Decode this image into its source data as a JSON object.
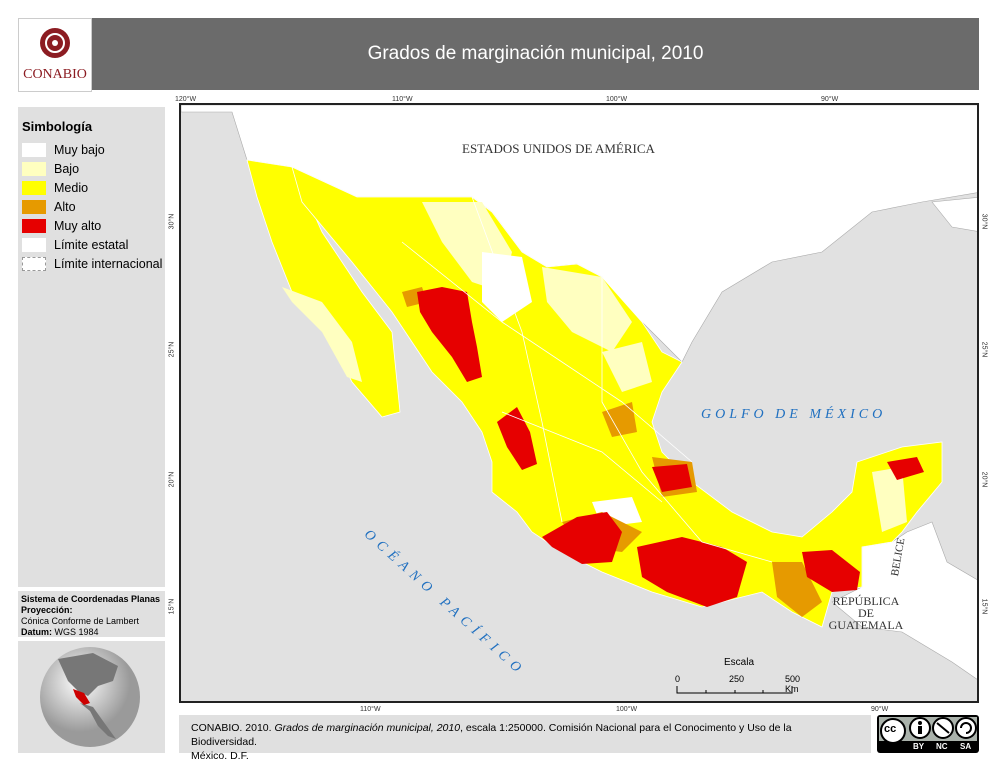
{
  "header": {
    "title": "Grados de marginación municipal, 2010",
    "logo_text": "CONABIO"
  },
  "legend": {
    "title": "Simbología",
    "items": [
      {
        "label": "Muy bajo",
        "color": "#ffffff"
      },
      {
        "label": "Bajo",
        "color": "#ffffc0"
      },
      {
        "label": "Medio",
        "color": "#ffff00"
      },
      {
        "label": "Alto",
        "color": "#e69a00"
      },
      {
        "label": "Muy alto",
        "color": "#e60000"
      },
      {
        "label": "Límite estatal",
        "color": "#ffffff"
      },
      {
        "label": "Límite internacional",
        "color": "#ffffff"
      }
    ]
  },
  "projection": {
    "system": "Sistema de Coordenadas Planas",
    "projection_label": "Proyección:",
    "projection_value": "Cónica Conforme de Lambert",
    "datum_label": "Datum:",
    "datum_value": "WGS 1984"
  },
  "map": {
    "labels": {
      "usa": "ESTADOS UNIDOS DE AMÉRICA",
      "gulf": "GOLFO DE MÉXICO",
      "pacific": "OCÉANO PACÍFICO",
      "belize": "BELICE",
      "guatemala_1": "REPÚBLICA",
      "guatemala_2": "DE",
      "guatemala_3": "GUATEMALA"
    },
    "top_ticks": [
      "120°W",
      "110°W",
      "100°W",
      "90°W"
    ],
    "bottom_ticks": [
      "110°W",
      "100°W",
      "90°W"
    ],
    "lat_ticks": [
      "30°N",
      "25°N",
      "20°N",
      "15°N"
    ],
    "scale": {
      "title": "Escala",
      "labels": [
        "0",
        "250",
        "500 Km"
      ]
    }
  },
  "citation": {
    "pre": "CONABIO. 2010. ",
    "title": "Grados de marginación municipal, 2010",
    "post": ", escala 1:250000. Comisión Nacional para el Conocimento y Uso de la Biodiversidad.",
    "line2": "México. D.F."
  },
  "license": {
    "labels": [
      "BY",
      "NC",
      "SA"
    ],
    "cc": "cc"
  }
}
